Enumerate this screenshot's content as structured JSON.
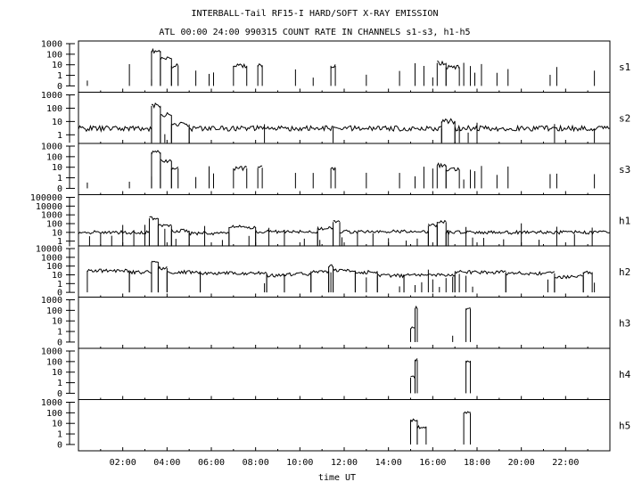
{
  "chart_data": {
    "type": "line",
    "title": "INTERBALL-Tail RF15-I HARD/SOFT X-RAY EMISSION",
    "subtitle": "ATL 00:00 24:00 990315  COUNT RATE IN CHANNELS s1-s3, h1-h5",
    "xlabel": "time UT",
    "xlim": [
      0,
      24
    ],
    "xticks": [
      "02:00",
      "04:00",
      "06:00",
      "08:00",
      "10:00",
      "12:00",
      "14:00",
      "16:00",
      "18:00",
      "20:00",
      "22:00"
    ],
    "yscale": "log",
    "grid": false,
    "panels": [
      {
        "name": "s1",
        "yticks": [
          "1000",
          "100",
          "10",
          "1",
          "0"
        ],
        "segments": [
          [
            3.3,
            3.7,
            200
          ],
          [
            3.7,
            4.2,
            40
          ],
          [
            4.2,
            4.5,
            8
          ],
          [
            7.0,
            7.6,
            8
          ],
          [
            8.1,
            8.3,
            9
          ],
          [
            11.4,
            11.6,
            8
          ],
          [
            16.2,
            16.6,
            15
          ],
          [
            16.6,
            17.2,
            6
          ]
        ],
        "spikes": [
          0.4,
          2.3,
          3.3,
          5.3,
          5.9,
          6.1,
          9.8,
          10.6,
          13.0,
          14.5,
          15.2,
          15.6,
          16.0,
          17.4,
          17.7,
          17.9,
          18.2,
          18.9,
          19.4,
          21.3,
          21.6,
          23.3
        ]
      },
      {
        "name": "s2",
        "yticks": [
          "1000",
          "100",
          "10",
          "1"
        ],
        "segments": [
          [
            0,
            3.3,
            3
          ],
          [
            3.3,
            3.7,
            150
          ],
          [
            3.7,
            4.2,
            30
          ],
          [
            4.2,
            5.0,
            6
          ],
          [
            5.0,
            16.4,
            3
          ],
          [
            16.4,
            17.0,
            10
          ],
          [
            17.0,
            24,
            3
          ]
        ],
        "spikes": [
          3.9,
          8.4,
          11.5,
          17.2,
          17.6,
          18.0,
          21.5,
          23.3
        ]
      },
      {
        "name": "s3",
        "yticks": [
          "1000",
          "100",
          "10",
          "1",
          "0"
        ],
        "segments": [
          [
            3.3,
            3.7,
            250
          ],
          [
            3.7,
            4.2,
            40
          ],
          [
            4.2,
            4.5,
            8
          ],
          [
            7.0,
            7.6,
            8
          ],
          [
            8.1,
            8.3,
            9
          ],
          [
            11.4,
            11.6,
            8
          ],
          [
            16.2,
            16.6,
            15
          ],
          [
            16.6,
            17.2,
            6
          ]
        ],
        "spikes": [
          0.4,
          2.3,
          3.3,
          5.3,
          5.9,
          6.1,
          9.8,
          10.6,
          13.0,
          14.5,
          15.2,
          15.6,
          16.0,
          17.4,
          17.7,
          17.9,
          18.2,
          18.9,
          19.4,
          21.3,
          21.6,
          23.3
        ]
      },
      {
        "name": "h1",
        "yticks": [
          "100000",
          "10000",
          "1000",
          "100",
          "10",
          "1"
        ],
        "segments": [
          [
            0,
            3.2,
            10
          ],
          [
            3.2,
            3.6,
            400
          ],
          [
            3.6,
            4.2,
            60
          ],
          [
            4.2,
            5.0,
            15
          ],
          [
            5.0,
            6.8,
            8
          ],
          [
            6.8,
            8.0,
            40
          ],
          [
            8.0,
            10.8,
            12
          ],
          [
            10.8,
            11.5,
            30
          ],
          [
            11.5,
            11.8,
            150
          ],
          [
            11.8,
            15.8,
            12
          ],
          [
            15.8,
            16.2,
            60
          ],
          [
            16.2,
            16.6,
            150
          ],
          [
            16.6,
            24,
            10
          ]
        ],
        "spikes": [
          0.5,
          1.0,
          1.5,
          2.0,
          2.5,
          3.0,
          3.9,
          4.4,
          5.7,
          6.5,
          7.7,
          8.6,
          9.3,
          10.2,
          10.9,
          11.9,
          12.6,
          13.3,
          14.0,
          14.8,
          15.3,
          16.7,
          17.5,
          17.8,
          18.3,
          19.2,
          20.0,
          20.8,
          21.6,
          22.4,
          23.2
        ]
      },
      {
        "name": "h2",
        "yticks": [
          "10000",
          "1000",
          "100",
          "10",
          "1",
          "0"
        ],
        "segments": [
          [
            0.4,
            2.3,
            30
          ],
          [
            2.3,
            3.3,
            20
          ],
          [
            3.3,
            3.6,
            300
          ],
          [
            3.6,
            4.0,
            60
          ],
          [
            4.0,
            5.5,
            20
          ],
          [
            5.5,
            8.5,
            15
          ],
          [
            8.5,
            9.3,
            8
          ],
          [
            9.3,
            10.5,
            12
          ],
          [
            10.5,
            11.3,
            25
          ],
          [
            11.3,
            11.5,
            90
          ],
          [
            11.5,
            12.5,
            30
          ],
          [
            12.5,
            13.5,
            20
          ],
          [
            13.5,
            14.7,
            8
          ],
          [
            14.7,
            17.0,
            10
          ],
          [
            17.0,
            19.3,
            20
          ],
          [
            19.3,
            21.5,
            15
          ],
          [
            21.5,
            22.8,
            6
          ],
          [
            22.8,
            23.2,
            20
          ]
        ],
        "spikes": [
          8.4,
          11.4,
          13.0,
          14.5,
          15.2,
          15.5,
          15.8,
          16.0,
          16.3,
          16.6,
          16.9,
          17.2,
          17.5,
          17.8,
          21.2,
          21.5,
          23.3
        ]
      },
      {
        "name": "h3",
        "yticks": [
          "1000",
          "100",
          "10",
          "1",
          "0"
        ],
        "segments": [
          [
            15.0,
            15.2,
            2
          ],
          [
            15.2,
            15.3,
            150
          ],
          [
            17.5,
            17.7,
            150
          ]
        ],
        "spikes": [
          16.9
        ]
      },
      {
        "name": "h4",
        "yticks": [
          "1000",
          "100",
          "10",
          "1",
          "0"
        ],
        "segments": [
          [
            15.0,
            15.2,
            3
          ],
          [
            15.2,
            15.3,
            150
          ],
          [
            17.5,
            17.7,
            120
          ]
        ],
        "spikes": []
      },
      {
        "name": "h5",
        "yticks": [
          "1000",
          "100",
          "10",
          "1",
          "0"
        ],
        "segments": [
          [
            15.0,
            15.3,
            20
          ],
          [
            15.3,
            15.7,
            5
          ],
          [
            17.4,
            17.7,
            100
          ]
        ],
        "spikes": []
      }
    ]
  }
}
